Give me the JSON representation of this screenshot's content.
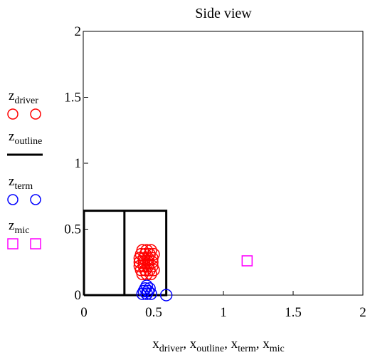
{
  "chart_data": {
    "type": "scatter",
    "title": "Side view",
    "xlabel": {
      "parts": [
        {
          "base": "x",
          "sub": "driver"
        },
        {
          "base": "x",
          "sub": "outline"
        },
        {
          "base": "x",
          "sub": "term"
        },
        {
          "base": "x",
          "sub": "mic"
        }
      ]
    },
    "xlim": [
      0,
      2
    ],
    "ylim": [
      0,
      2
    ],
    "xticks": [
      "0",
      "0.5",
      "1",
      "1.5",
      "2"
    ],
    "yticks": [
      "0",
      "0.5",
      "1",
      "1.5",
      "2"
    ],
    "grid": false,
    "legend_position": "left",
    "series": [
      {
        "name": {
          "base": "z",
          "sub": "driver"
        },
        "marker": "circle",
        "color": "#ff0000",
        "points": [
          [
            0.42,
            0.34
          ],
          [
            0.45,
            0.34
          ],
          [
            0.48,
            0.34
          ],
          [
            0.41,
            0.31
          ],
          [
            0.44,
            0.31
          ],
          [
            0.47,
            0.31
          ],
          [
            0.5,
            0.31
          ],
          [
            0.4,
            0.28
          ],
          [
            0.43,
            0.28
          ],
          [
            0.46,
            0.28
          ],
          [
            0.49,
            0.28
          ],
          [
            0.4,
            0.25
          ],
          [
            0.43,
            0.25
          ],
          [
            0.46,
            0.25
          ],
          [
            0.49,
            0.25
          ],
          [
            0.4,
            0.22
          ],
          [
            0.43,
            0.22
          ],
          [
            0.46,
            0.22
          ],
          [
            0.49,
            0.22
          ],
          [
            0.41,
            0.19
          ],
          [
            0.44,
            0.19
          ],
          [
            0.47,
            0.19
          ],
          [
            0.5,
            0.19
          ],
          [
            0.42,
            0.16
          ],
          [
            0.45,
            0.16
          ],
          [
            0.48,
            0.16
          ]
        ]
      },
      {
        "name": {
          "base": "z",
          "sub": "outline"
        },
        "marker": "line",
        "color": "#000000",
        "segments": [
          [
            [
              0,
              0
            ],
            [
              0,
              0.64
            ],
            [
              0.59,
              0.64
            ],
            [
              0.59,
              0
            ],
            [
              0,
              0
            ]
          ],
          [
            [
              0.29,
              0
            ],
            [
              0.29,
              0.64
            ]
          ]
        ]
      },
      {
        "name": {
          "base": "z",
          "sub": "term"
        },
        "marker": "circle",
        "color": "#0000ff",
        "points": [
          [
            0.42,
            0.01
          ],
          [
            0.45,
            0.01
          ],
          [
            0.48,
            0.01
          ],
          [
            0.43,
            0.03
          ],
          [
            0.46,
            0.03
          ],
          [
            0.44,
            0.05
          ],
          [
            0.47,
            0.05
          ],
          [
            0.45,
            0.07
          ],
          [
            0.59,
            0.0
          ]
        ]
      },
      {
        "name": {
          "base": "z",
          "sub": "mic"
        },
        "marker": "square",
        "color": "#ff00ff",
        "points": [
          [
            1.17,
            0.26
          ]
        ]
      }
    ]
  }
}
